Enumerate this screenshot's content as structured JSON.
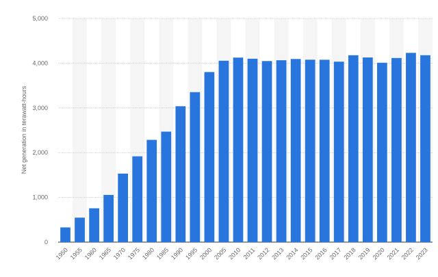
{
  "chart_data": {
    "type": "bar",
    "title": "",
    "xlabel": "",
    "ylabel": "Net generation in terawatt-hours",
    "ylim": [
      0,
      5000
    ],
    "yticks": [
      "0",
      "1,000",
      "2,000",
      "3,000",
      "4,000",
      "5,000"
    ],
    "grid": true,
    "bar_color": "#2876dd",
    "categories": [
      "1950",
      "1955",
      "1960",
      "1965",
      "1970",
      "1975",
      "1980",
      "1985",
      "1990",
      "1995",
      "2000",
      "2005",
      "2010",
      "2011",
      "2012",
      "2013",
      "2014",
      "2015",
      "2016",
      "2017",
      "2018",
      "2019",
      "2020",
      "2021",
      "2022",
      "2023"
    ],
    "values": [
      329,
      547,
      756,
      1055,
      1532,
      1918,
      2286,
      2470,
      3038,
      3353,
      3802,
      4055,
      4125,
      4100,
      4048,
      4066,
      4094,
      4078,
      4077,
      4034,
      4178,
      4128,
      4010,
      4116,
      4231,
      4178
    ]
  }
}
